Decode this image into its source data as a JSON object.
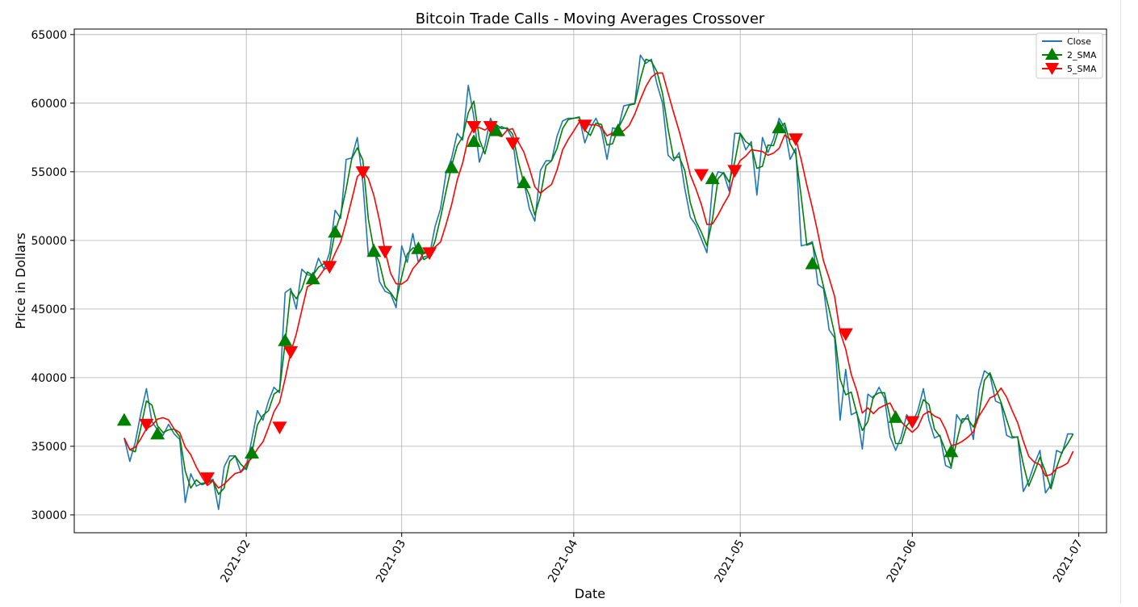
{
  "chart_data": {
    "type": "line",
    "title": "Bitcoin Trade Calls - Moving Averages Crossover",
    "xlabel": "Date",
    "ylabel": "Price in Dollars",
    "x_range": [
      "2021-01-01",
      "2021-07-06"
    ],
    "ylim": [
      28700,
      65400
    ],
    "yticks": [
      30000,
      35000,
      40000,
      45000,
      50000,
      55000,
      60000,
      65000
    ],
    "xticks": [
      "2021-02",
      "2021-03",
      "2021-04",
      "2021-05",
      "2021-06",
      "2021-07"
    ],
    "grid": true,
    "legend_position": "top-right",
    "colors": {
      "close": "#1f77b4",
      "sma2": "#008000",
      "sma5": "#ff0000",
      "buy": "#008000",
      "sell": "#ff0000"
    },
    "close": [
      [
        "2021-01-10",
        35600
      ],
      [
        "2021-01-11",
        33900
      ],
      [
        "2021-01-12",
        35300
      ],
      [
        "2021-01-13",
        37400
      ],
      [
        "2021-01-14",
        39200
      ],
      [
        "2021-01-15",
        36800
      ],
      [
        "2021-01-16",
        36200
      ],
      [
        "2021-01-17",
        35800
      ],
      [
        "2021-01-18",
        36600
      ],
      [
        "2021-01-19",
        35900
      ],
      [
        "2021-01-20",
        35500
      ],
      [
        "2021-01-21",
        30900
      ],
      [
        "2021-01-22",
        33000
      ],
      [
        "2021-01-23",
        32100
      ],
      [
        "2021-01-24",
        32300
      ],
      [
        "2021-01-25",
        32400
      ],
      [
        "2021-01-26",
        32600
      ],
      [
        "2021-01-27",
        30400
      ],
      [
        "2021-01-28",
        33500
      ],
      [
        "2021-01-29",
        34300
      ],
      [
        "2021-01-30",
        34300
      ],
      [
        "2021-01-31",
        33100
      ],
      [
        "2021-02-01",
        33500
      ],
      [
        "2021-02-02",
        35500
      ],
      [
        "2021-02-03",
        37600
      ],
      [
        "2021-02-04",
        36900
      ],
      [
        "2021-02-05",
        38300
      ],
      [
        "2021-02-06",
        39300
      ],
      [
        "2021-02-07",
        38900
      ],
      [
        "2021-02-08",
        46200
      ],
      [
        "2021-02-09",
        46500
      ],
      [
        "2021-02-10",
        45000
      ],
      [
        "2021-02-11",
        47900
      ],
      [
        "2021-02-12",
        47500
      ],
      [
        "2021-02-13",
        47400
      ],
      [
        "2021-02-14",
        48700
      ],
      [
        "2021-02-15",
        47900
      ],
      [
        "2021-02-16",
        49100
      ],
      [
        "2021-02-17",
        52200
      ],
      [
        "2021-02-18",
        51600
      ],
      [
        "2021-02-19",
        55900
      ],
      [
        "2021-02-20",
        56000
      ],
      [
        "2021-02-21",
        57500
      ],
      [
        "2021-02-22",
        54200
      ],
      [
        "2021-02-23",
        48900
      ],
      [
        "2021-02-24",
        49700
      ],
      [
        "2021-02-25",
        47000
      ],
      [
        "2021-02-26",
        46300
      ],
      [
        "2021-02-27",
        46100
      ],
      [
        "2021-02-28",
        45100
      ],
      [
        "2021-03-01",
        49600
      ],
      [
        "2021-03-02",
        48400
      ],
      [
        "2021-03-03",
        50500
      ],
      [
        "2021-03-04",
        48400
      ],
      [
        "2021-03-05",
        48800
      ],
      [
        "2021-03-06",
        48900
      ],
      [
        "2021-03-07",
        51000
      ],
      [
        "2021-03-08",
        52300
      ],
      [
        "2021-03-09",
        54900
      ],
      [
        "2021-03-10",
        56000
      ],
      [
        "2021-03-11",
        57800
      ],
      [
        "2021-03-12",
        57300
      ],
      [
        "2021-03-13",
        61300
      ],
      [
        "2021-03-14",
        59000
      ],
      [
        "2021-03-15",
        55700
      ],
      [
        "2021-03-16",
        56900
      ],
      [
        "2021-03-17",
        58900
      ],
      [
        "2021-03-18",
        58000
      ],
      [
        "2021-03-19",
        58300
      ],
      [
        "2021-03-20",
        58100
      ],
      [
        "2021-03-21",
        57400
      ],
      [
        "2021-03-22",
        54100
      ],
      [
        "2021-03-23",
        54300
      ],
      [
        "2021-03-24",
        52300
      ],
      [
        "2021-03-25",
        51400
      ],
      [
        "2021-03-26",
        55100
      ],
      [
        "2021-03-27",
        55800
      ],
      [
        "2021-03-28",
        55800
      ],
      [
        "2021-03-29",
        57600
      ],
      [
        "2021-03-30",
        58700
      ],
      [
        "2021-03-31",
        58900
      ],
      [
        "2021-04-01",
        58900
      ],
      [
        "2021-04-02",
        59000
      ],
      [
        "2021-04-03",
        57100
      ],
      [
        "2021-04-04",
        58200
      ],
      [
        "2021-04-05",
        58900
      ],
      [
        "2021-04-06",
        58000
      ],
      [
        "2021-04-07",
        55900
      ],
      [
        "2021-04-08",
        58200
      ],
      [
        "2021-04-09",
        58100
      ],
      [
        "2021-04-10",
        59800
      ],
      [
        "2021-04-11",
        59900
      ],
      [
        "2021-04-12",
        60000
      ],
      [
        "2021-04-13",
        63500
      ],
      [
        "2021-04-14",
        62900
      ],
      [
        "2021-04-15",
        63200
      ],
      [
        "2021-04-16",
        61400
      ],
      [
        "2021-04-17",
        60000
      ],
      [
        "2021-04-18",
        56200
      ],
      [
        "2021-04-19",
        55800
      ],
      [
        "2021-04-20",
        56400
      ],
      [
        "2021-04-21",
        53800
      ],
      [
        "2021-04-22",
        51700
      ],
      [
        "2021-04-23",
        51100
      ],
      [
        "2021-04-24",
        50100
      ],
      [
        "2021-04-25",
        49100
      ],
      [
        "2021-04-26",
        54000
      ],
      [
        "2021-04-27",
        55000
      ],
      [
        "2021-04-28",
        54900
      ],
      [
        "2021-04-29",
        53600
      ],
      [
        "2021-04-30",
        57800
      ],
      [
        "2021-05-01",
        57800
      ],
      [
        "2021-05-02",
        56600
      ],
      [
        "2021-05-03",
        57200
      ],
      [
        "2021-05-04",
        53300
      ],
      [
        "2021-05-05",
        57500
      ],
      [
        "2021-05-06",
        56400
      ],
      [
        "2021-05-07",
        57400
      ],
      [
        "2021-05-08",
        58900
      ],
      [
        "2021-05-09",
        58200
      ],
      [
        "2021-05-10",
        55900
      ],
      [
        "2021-05-11",
        56700
      ],
      [
        "2021-05-12",
        49600
      ],
      [
        "2021-05-13",
        49700
      ],
      [
        "2021-05-14",
        49900
      ],
      [
        "2021-05-15",
        46800
      ],
      [
        "2021-05-16",
        46500
      ],
      [
        "2021-05-17",
        43500
      ],
      [
        "2021-05-18",
        42900
      ],
      [
        "2021-05-19",
        36900
      ],
      [
        "2021-05-20",
        40600
      ],
      [
        "2021-05-21",
        37300
      ],
      [
        "2021-05-22",
        37500
      ],
      [
        "2021-05-23",
        34800
      ],
      [
        "2021-05-24",
        38800
      ],
      [
        "2021-05-25",
        38500
      ],
      [
        "2021-05-26",
        39300
      ],
      [
        "2021-05-27",
        38500
      ],
      [
        "2021-05-28",
        35700
      ],
      [
        "2021-05-29",
        34700
      ],
      [
        "2021-05-30",
        35700
      ],
      [
        "2021-05-31",
        37300
      ],
      [
        "2021-06-01",
        36700
      ],
      [
        "2021-06-02",
        37600
      ],
      [
        "2021-06-03",
        39200
      ],
      [
        "2021-06-04",
        36900
      ],
      [
        "2021-06-05",
        35600
      ],
      [
        "2021-06-06",
        35800
      ],
      [
        "2021-06-07",
        33600
      ],
      [
        "2021-06-08",
        33400
      ],
      [
        "2021-06-09",
        37300
      ],
      [
        "2021-06-10",
        36700
      ],
      [
        "2021-06-11",
        37300
      ],
      [
        "2021-06-12",
        35500
      ],
      [
        "2021-06-13",
        39100
      ],
      [
        "2021-06-14",
        40500
      ],
      [
        "2021-06-15",
        40200
      ],
      [
        "2021-06-16",
        38300
      ],
      [
        "2021-06-17",
        38100
      ],
      [
        "2021-06-18",
        35800
      ],
      [
        "2021-06-19",
        35600
      ],
      [
        "2021-06-20",
        35700
      ],
      [
        "2021-06-21",
        31700
      ],
      [
        "2021-06-22",
        32500
      ],
      [
        "2021-06-23",
        33700
      ],
      [
        "2021-06-24",
        34700
      ],
      [
        "2021-06-25",
        31600
      ],
      [
        "2021-06-26",
        32200
      ],
      [
        "2021-06-27",
        34700
      ],
      [
        "2021-06-28",
        34500
      ],
      [
        "2021-06-29",
        35900
      ],
      [
        "2021-06-30",
        35900
      ]
    ],
    "series": [
      {
        "name": "Close",
        "source": "close",
        "window": 1
      },
      {
        "name": "2_SMA",
        "source": "close",
        "window": 2
      },
      {
        "name": "5_SMA",
        "source": "close",
        "window": 5
      }
    ],
    "buy_signals": [
      [
        "2021-01-10",
        36900
      ],
      [
        "2021-01-16",
        35900
      ],
      [
        "2021-02-02",
        34500
      ],
      [
        "2021-02-08",
        42700
      ],
      [
        "2021-02-13",
        47200
      ],
      [
        "2021-02-17",
        50600
      ],
      [
        "2021-02-24",
        49200
      ],
      [
        "2021-03-04",
        49400
      ],
      [
        "2021-03-10",
        55300
      ],
      [
        "2021-03-14",
        57200
      ],
      [
        "2021-03-18",
        58000
      ],
      [
        "2021-03-23",
        54200
      ],
      [
        "2021-04-09",
        58000
      ],
      [
        "2021-04-26",
        54500
      ],
      [
        "2021-05-08",
        58200
      ],
      [
        "2021-05-14",
        48300
      ],
      [
        "2021-05-29",
        37100
      ],
      [
        "2021-06-08",
        34600
      ]
    ],
    "sell_signals": [
      [
        "2021-01-14",
        36600
      ],
      [
        "2021-01-25",
        32700
      ],
      [
        "2021-02-07",
        36400
      ],
      [
        "2021-02-09",
        41900
      ],
      [
        "2021-02-16",
        48100
      ],
      [
        "2021-02-22",
        55000
      ],
      [
        "2021-02-26",
        49200
      ],
      [
        "2021-03-06",
        49100
      ],
      [
        "2021-03-14",
        58300
      ],
      [
        "2021-03-17",
        58300
      ],
      [
        "2021-03-21",
        57100
      ],
      [
        "2021-04-03",
        58400
      ],
      [
        "2021-04-24",
        54800
      ],
      [
        "2021-04-30",
        55100
      ],
      [
        "2021-05-11",
        57400
      ],
      [
        "2021-05-20",
        43200
      ],
      [
        "2021-06-01",
        36800
      ]
    ]
  }
}
